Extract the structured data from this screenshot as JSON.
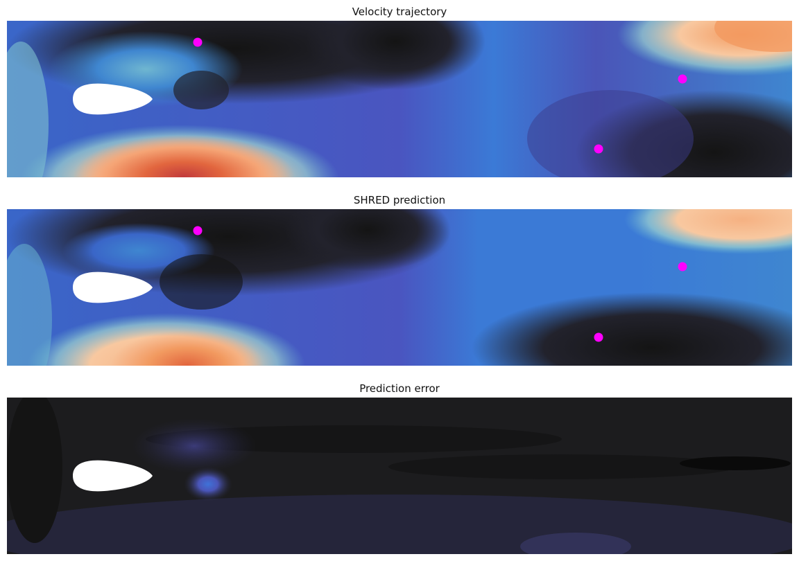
{
  "figure": {
    "panels": [
      {
        "title": "Velocity trajectory"
      },
      {
        "title": "SHRED prediction"
      },
      {
        "title": "Prediction error"
      }
    ]
  },
  "chart_data": [
    {
      "type": "heatmap",
      "title": "Velocity trajectory",
      "colormap": "icefire",
      "sensors": [
        {
          "x": 0.243,
          "y": 0.14
        },
        {
          "x": 0.86,
          "y": 0.37
        },
        {
          "x": 0.754,
          "y": 0.82
        }
      ],
      "sensor_color": "#ff00ff",
      "obstacle": "airfoil",
      "axes": "off"
    },
    {
      "type": "heatmap",
      "title": "SHRED prediction",
      "colormap": "icefire",
      "sensors": [
        {
          "x": 0.243,
          "y": 0.14
        },
        {
          "x": 0.86,
          "y": 0.37
        },
        {
          "x": 0.754,
          "y": 0.82
        }
      ],
      "sensor_color": "#ff00ff",
      "obstacle": "airfoil",
      "axes": "off"
    },
    {
      "type": "heatmap",
      "title": "Prediction error",
      "colormap": "icefire",
      "sensors": [],
      "obstacle": "airfoil",
      "axes": "off"
    }
  ]
}
